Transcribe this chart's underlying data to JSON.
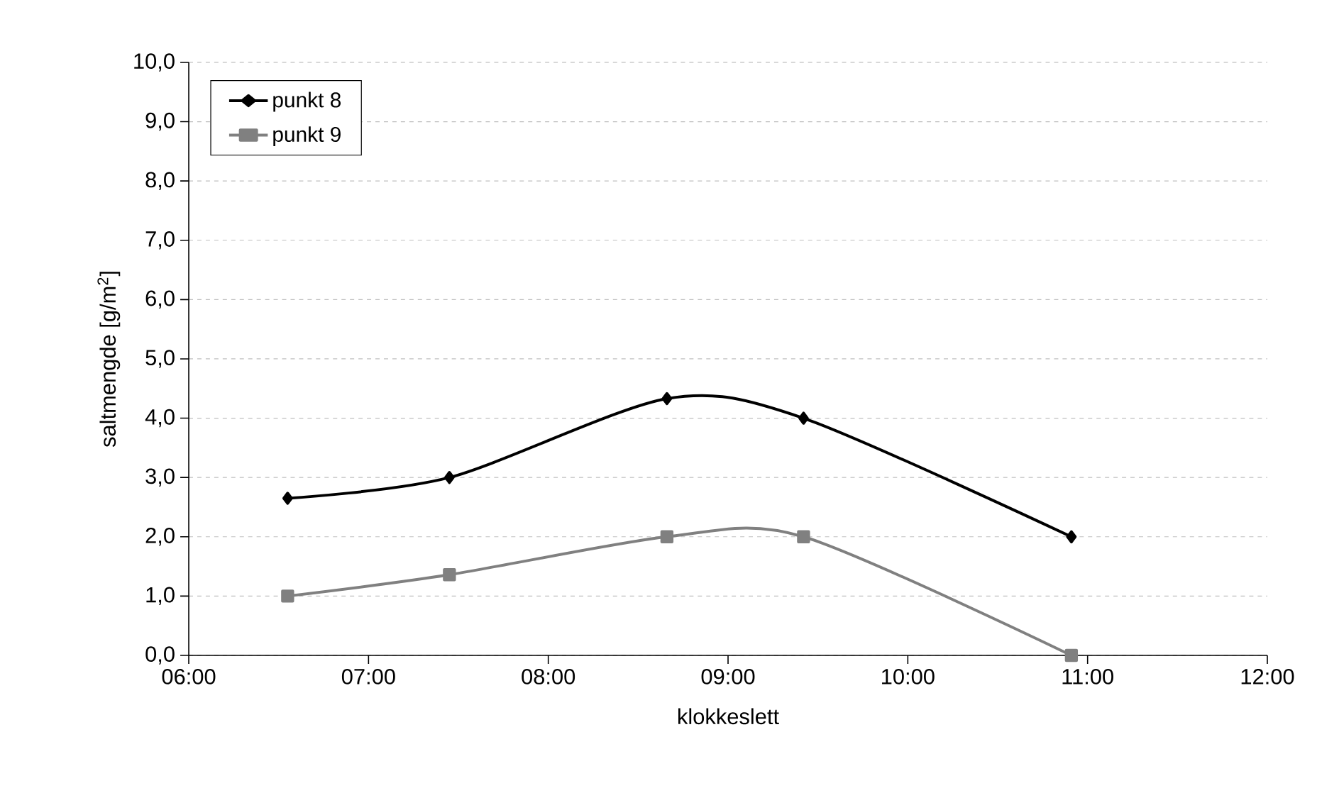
{
  "chart_data": {
    "type": "line",
    "xlabel": "klokkeslett",
    "ylabel": "saltmengde [g/m$^{2}$]",
    "x": [
      6.55,
      7.45,
      8.66,
      9.42,
      10.91
    ],
    "series": [
      {
        "name": "punkt  8",
        "color": "#000000",
        "marker": "diamond",
        "values": [
          2.65,
          3.0,
          4.33,
          4.0,
          2.0
        ]
      },
      {
        "name": "punkt 9",
        "color": "#808080",
        "marker": "square",
        "values": [
          1.0,
          1.36,
          2.0,
          2.0,
          0.0
        ]
      }
    ],
    "xlim": [
      6,
      12
    ],
    "ylim": [
      0,
      10
    ],
    "xticks": [
      {
        "value": 6,
        "label": "06:00"
      },
      {
        "value": 7,
        "label": "07:00"
      },
      {
        "value": 8,
        "label": "08:00"
      },
      {
        "value": 9,
        "label": "09:00"
      },
      {
        "value": 10,
        "label": "10:00"
      },
      {
        "value": 11,
        "label": "11:00"
      },
      {
        "value": 12,
        "label": "12:00"
      }
    ],
    "yticks": [
      {
        "value": 0,
        "label": "0,0"
      },
      {
        "value": 1,
        "label": "1,0"
      },
      {
        "value": 2,
        "label": "2,0"
      },
      {
        "value": 3,
        "label": "3,0"
      },
      {
        "value": 4,
        "label": "4,0"
      },
      {
        "value": 5,
        "label": "5,0"
      },
      {
        "value": 6,
        "label": "6,0"
      },
      {
        "value": 7,
        "label": "7,0"
      },
      {
        "value": 8,
        "label": "8,0"
      },
      {
        "value": 9,
        "label": "9,0"
      },
      {
        "value": 10,
        "label": "10,0"
      }
    ],
    "grid": "y",
    "legend": "top left",
    "line_style": "solid"
  }
}
